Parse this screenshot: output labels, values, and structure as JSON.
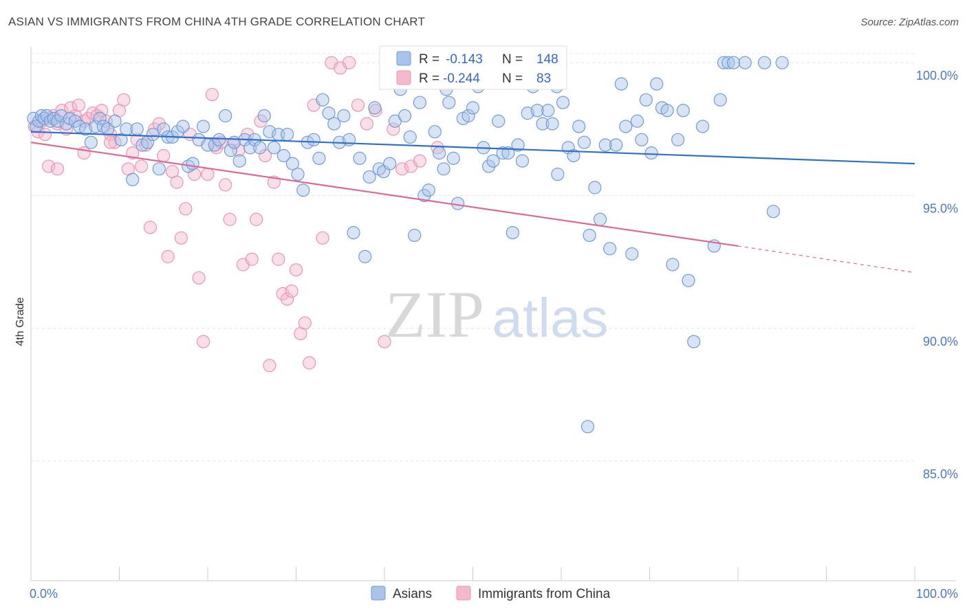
{
  "title": "ASIAN VS IMMIGRANTS FROM CHINA 4TH GRADE CORRELATION CHART",
  "source": "Source: ZipAtlas.com",
  "watermark": {
    "zip": "ZIP",
    "atlas": "atlas"
  },
  "colors": {
    "asians_fill": "#a9c4ea",
    "asians_stroke": "#6f9bd8",
    "asians_line": "#2f6fcc",
    "china_fill": "#f5b8cc",
    "china_stroke": "#ec93b0",
    "china_line": "#e0658f",
    "grid": "#e4e4e4",
    "tick_text": "#4a78c2"
  },
  "legend": {
    "r_label": "R =",
    "n_label": "N =",
    "rows": [
      {
        "series": "asians",
        "r": "-0.143",
        "n": "148"
      },
      {
        "series": "china",
        "r": "-0.244",
        "n": "83"
      }
    ]
  },
  "chart_data": {
    "type": "scatter",
    "title": "ASIAN VS IMMIGRANTS FROM CHINA 4TH GRADE CORRELATION CHART",
    "xlabel": "",
    "ylabel": "4th Grade",
    "xlim": [
      0,
      100
    ],
    "ylim": [
      80.5,
      100.6
    ],
    "x_tick_labels": [
      "0.0%",
      "100.0%"
    ],
    "y_ticks": [
      85,
      90,
      95,
      100
    ],
    "y_tick_labels": [
      "85.0%",
      "90.0%",
      "95.0%",
      "100.0%"
    ],
    "grid": true,
    "legend_position": "top-center",
    "series": [
      {
        "name": "Asians",
        "key": "asians",
        "r": -0.143,
        "n": 148,
        "trend": {
          "x0": 0,
          "y0": 97.4,
          "x1": 100,
          "y1": 96.2
        },
        "points": [
          [
            0.3,
            97.9
          ],
          [
            0.6,
            97.6
          ],
          [
            0.9,
            97.8
          ],
          [
            1.2,
            98.0
          ],
          [
            1.5,
            97.9
          ],
          [
            1.8,
            98.0
          ],
          [
            2.2,
            97.8
          ],
          [
            2.6,
            97.9
          ],
          [
            3.0,
            97.8
          ],
          [
            3.4,
            98.0
          ],
          [
            4.0,
            97.7
          ],
          [
            4.4,
            97.9
          ],
          [
            5.0,
            97.8
          ],
          [
            5.5,
            97.6
          ],
          [
            6.2,
            97.5
          ],
          [
            6.8,
            97.0
          ],
          [
            7.3,
            97.6
          ],
          [
            7.8,
            97.9
          ],
          [
            8.2,
            97.6
          ],
          [
            8.7,
            97.5
          ],
          [
            9.5,
            97.8
          ],
          [
            10.2,
            97.1
          ],
          [
            10.8,
            97.5
          ],
          [
            11.5,
            95.6
          ],
          [
            12.0,
            97.5
          ],
          [
            12.6,
            96.9
          ],
          [
            13.2,
            97.0
          ],
          [
            13.8,
            97.3
          ],
          [
            14.5,
            96.0
          ],
          [
            15.0,
            97.5
          ],
          [
            15.5,
            97.2
          ],
          [
            16.0,
            97.2
          ],
          [
            16.6,
            97.4
          ],
          [
            17.2,
            97.6
          ],
          [
            17.8,
            96.1
          ],
          [
            18.3,
            96.2
          ],
          [
            19.0,
            97.1
          ],
          [
            19.5,
            97.6
          ],
          [
            20.0,
            96.9
          ],
          [
            20.8,
            96.9
          ],
          [
            21.3,
            97.1
          ],
          [
            22.0,
            98.0
          ],
          [
            22.6,
            96.7
          ],
          [
            23.0,
            97.0
          ],
          [
            23.6,
            96.3
          ],
          [
            24.2,
            97.1
          ],
          [
            24.8,
            96.8
          ],
          [
            25.3,
            97.1
          ],
          [
            25.9,
            96.8
          ],
          [
            26.4,
            98.0
          ],
          [
            27.0,
            97.4
          ],
          [
            27.5,
            96.8
          ],
          [
            28.0,
            97.3
          ],
          [
            28.6,
            96.5
          ],
          [
            29.0,
            97.3
          ],
          [
            29.6,
            96.2
          ],
          [
            30.2,
            95.8
          ],
          [
            30.8,
            95.2
          ],
          [
            31.3,
            97.0
          ],
          [
            32.0,
            97.1
          ],
          [
            32.6,
            96.4
          ],
          [
            33.0,
            98.6
          ],
          [
            33.7,
            98.1
          ],
          [
            34.3,
            97.7
          ],
          [
            34.9,
            97.0
          ],
          [
            35.4,
            98.0
          ],
          [
            36.0,
            97.1
          ],
          [
            36.5,
            93.6
          ],
          [
            37.2,
            96.4
          ],
          [
            37.8,
            92.7
          ],
          [
            38.3,
            95.7
          ],
          [
            38.9,
            98.3
          ],
          [
            39.4,
            96.0
          ],
          [
            39.9,
            95.9
          ],
          [
            40.6,
            96.2
          ],
          [
            41.2,
            97.8
          ],
          [
            41.8,
            99.0
          ],
          [
            42.3,
            98.0
          ],
          [
            42.9,
            97.2
          ],
          [
            43.4,
            93.5
          ],
          [
            44.0,
            98.5
          ],
          [
            44.5,
            95.0
          ],
          [
            45.0,
            95.2
          ],
          [
            45.7,
            97.4
          ],
          [
            46.2,
            96.6
          ],
          [
            46.7,
            96.0
          ],
          [
            47.3,
            98.5
          ],
          [
            47.8,
            96.4
          ],
          [
            48.3,
            94.7
          ],
          [
            48.9,
            97.9
          ],
          [
            49.5,
            98.0
          ],
          [
            50.0,
            98.3
          ],
          [
            50.6,
            99.1
          ],
          [
            51.2,
            96.8
          ],
          [
            51.8,
            96.1
          ],
          [
            52.3,
            96.3
          ],
          [
            52.9,
            97.8
          ],
          [
            53.4,
            96.6
          ],
          [
            54.0,
            96.6
          ],
          [
            54.5,
            93.6
          ],
          [
            55.1,
            96.9
          ],
          [
            55.6,
            96.3
          ],
          [
            56.2,
            98.1
          ],
          [
            56.8,
            99.1
          ],
          [
            57.3,
            98.2
          ],
          [
            57.9,
            97.7
          ],
          [
            58.5,
            98.2
          ],
          [
            59.0,
            97.7
          ],
          [
            59.6,
            95.8
          ],
          [
            60.2,
            98.5
          ],
          [
            60.8,
            96.8
          ],
          [
            61.4,
            96.5
          ],
          [
            62.0,
            97.6
          ],
          [
            62.6,
            97.0
          ],
          [
            63.2,
            93.5
          ],
          [
            63.8,
            95.3
          ],
          [
            64.4,
            94.1
          ],
          [
            65.0,
            96.9
          ],
          [
            65.5,
            93.0
          ],
          [
            66.2,
            96.9
          ],
          [
            66.8,
            99.2
          ],
          [
            67.3,
            97.6
          ],
          [
            68.0,
            92.8
          ],
          [
            68.6,
            97.8
          ],
          [
            69.1,
            97.1
          ],
          [
            69.6,
            98.6
          ],
          [
            70.2,
            96.6
          ],
          [
            70.8,
            99.2
          ],
          [
            71.4,
            98.3
          ],
          [
            72.0,
            98.2
          ],
          [
            72.6,
            92.4
          ],
          [
            73.2,
            97.1
          ],
          [
            73.8,
            98.2
          ],
          [
            74.4,
            91.8
          ],
          [
            75.0,
            89.5
          ],
          [
            76.0,
            97.6
          ],
          [
            77.3,
            93.1
          ],
          [
            78.0,
            98.6
          ],
          [
            78.4,
            100.0
          ],
          [
            78.9,
            100.0
          ],
          [
            79.5,
            100.0
          ],
          [
            80.8,
            100.0
          ],
          [
            83.0,
            100.0
          ],
          [
            84.0,
            94.4
          ],
          [
            85.0,
            100.0
          ],
          [
            63.0,
            86.3
          ],
          [
            59.5,
            99.1
          ],
          [
            47.0,
            99.0
          ]
        ]
      },
      {
        "name": "Immigrants from China",
        "key": "china",
        "r": -0.244,
        "n": 83,
        "trend": {
          "x0": 0,
          "y0": 97.0,
          "x1": 80,
          "y1": 93.1,
          "x2": 100,
          "y2": 92.1
        },
        "points": [
          [
            0.4,
            97.6
          ],
          [
            0.8,
            97.4
          ],
          [
            1.2,
            97.8
          ],
          [
            1.6,
            97.3
          ],
          [
            2.0,
            97.9
          ],
          [
            2.5,
            98.0
          ],
          [
            3.0,
            97.7
          ],
          [
            3.5,
            98.2
          ],
          [
            4.0,
            97.5
          ],
          [
            4.5,
            98.3
          ],
          [
            5.0,
            98.0
          ],
          [
            5.4,
            98.4
          ],
          [
            6.0,
            97.8
          ],
          [
            6.5,
            97.9
          ],
          [
            7.0,
            98.1
          ],
          [
            7.5,
            98.0
          ],
          [
            8.0,
            98.2
          ],
          [
            8.5,
            97.8
          ],
          [
            9.0,
            97.3
          ],
          [
            9.5,
            97.0
          ],
          [
            10.0,
            98.2
          ],
          [
            10.5,
            98.6
          ],
          [
            11.0,
            96.0
          ],
          [
            11.5,
            96.6
          ],
          [
            12.0,
            97.1
          ],
          [
            12.5,
            96.1
          ],
          [
            13.0,
            96.9
          ],
          [
            13.5,
            93.8
          ],
          [
            14.0,
            97.5
          ],
          [
            14.5,
            97.7
          ],
          [
            15.0,
            96.5
          ],
          [
            15.5,
            92.7
          ],
          [
            16.0,
            95.9
          ],
          [
            16.5,
            95.5
          ],
          [
            17.0,
            93.4
          ],
          [
            17.5,
            94.5
          ],
          [
            18.0,
            97.3
          ],
          [
            18.5,
            95.8
          ],
          [
            19.0,
            91.9
          ],
          [
            19.5,
            89.5
          ],
          [
            20.0,
            95.8
          ],
          [
            20.5,
            98.8
          ],
          [
            21.0,
            96.8
          ],
          [
            21.5,
            97.0
          ],
          [
            22.0,
            95.4
          ],
          [
            22.5,
            94.1
          ],
          [
            23.0,
            97.0
          ],
          [
            23.5,
            96.7
          ],
          [
            24.0,
            92.4
          ],
          [
            24.5,
            97.3
          ],
          [
            25.0,
            92.6
          ],
          [
            25.5,
            94.1
          ],
          [
            26.0,
            97.8
          ],
          [
            26.5,
            96.5
          ],
          [
            27.0,
            88.6
          ],
          [
            27.5,
            95.5
          ],
          [
            28.0,
            92.6
          ],
          [
            28.5,
            91.3
          ],
          [
            29.0,
            91.1
          ],
          [
            29.5,
            91.4
          ],
          [
            30.0,
            92.2
          ],
          [
            30.5,
            89.8
          ],
          [
            31.0,
            90.2
          ],
          [
            31.5,
            88.7
          ],
          [
            32.0,
            98.4
          ],
          [
            33.0,
            93.4
          ],
          [
            34.0,
            100.0
          ],
          [
            35.0,
            99.8
          ],
          [
            36.0,
            100.0
          ],
          [
            37.0,
            98.4
          ],
          [
            38.0,
            97.7
          ],
          [
            39.0,
            98.2
          ],
          [
            40.0,
            89.5
          ],
          [
            41.0,
            97.5
          ],
          [
            42.0,
            96.0
          ],
          [
            43.0,
            96.1
          ],
          [
            44.0,
            96.3
          ],
          [
            45.0,
            100.0
          ],
          [
            46.0,
            96.8
          ],
          [
            2.0,
            96.1
          ],
          [
            6.0,
            96.6
          ],
          [
            9.0,
            97.0
          ],
          [
            3.0,
            96.0
          ]
        ]
      }
    ]
  },
  "bottom_legend": [
    "Asians",
    "Immigrants from China"
  ]
}
